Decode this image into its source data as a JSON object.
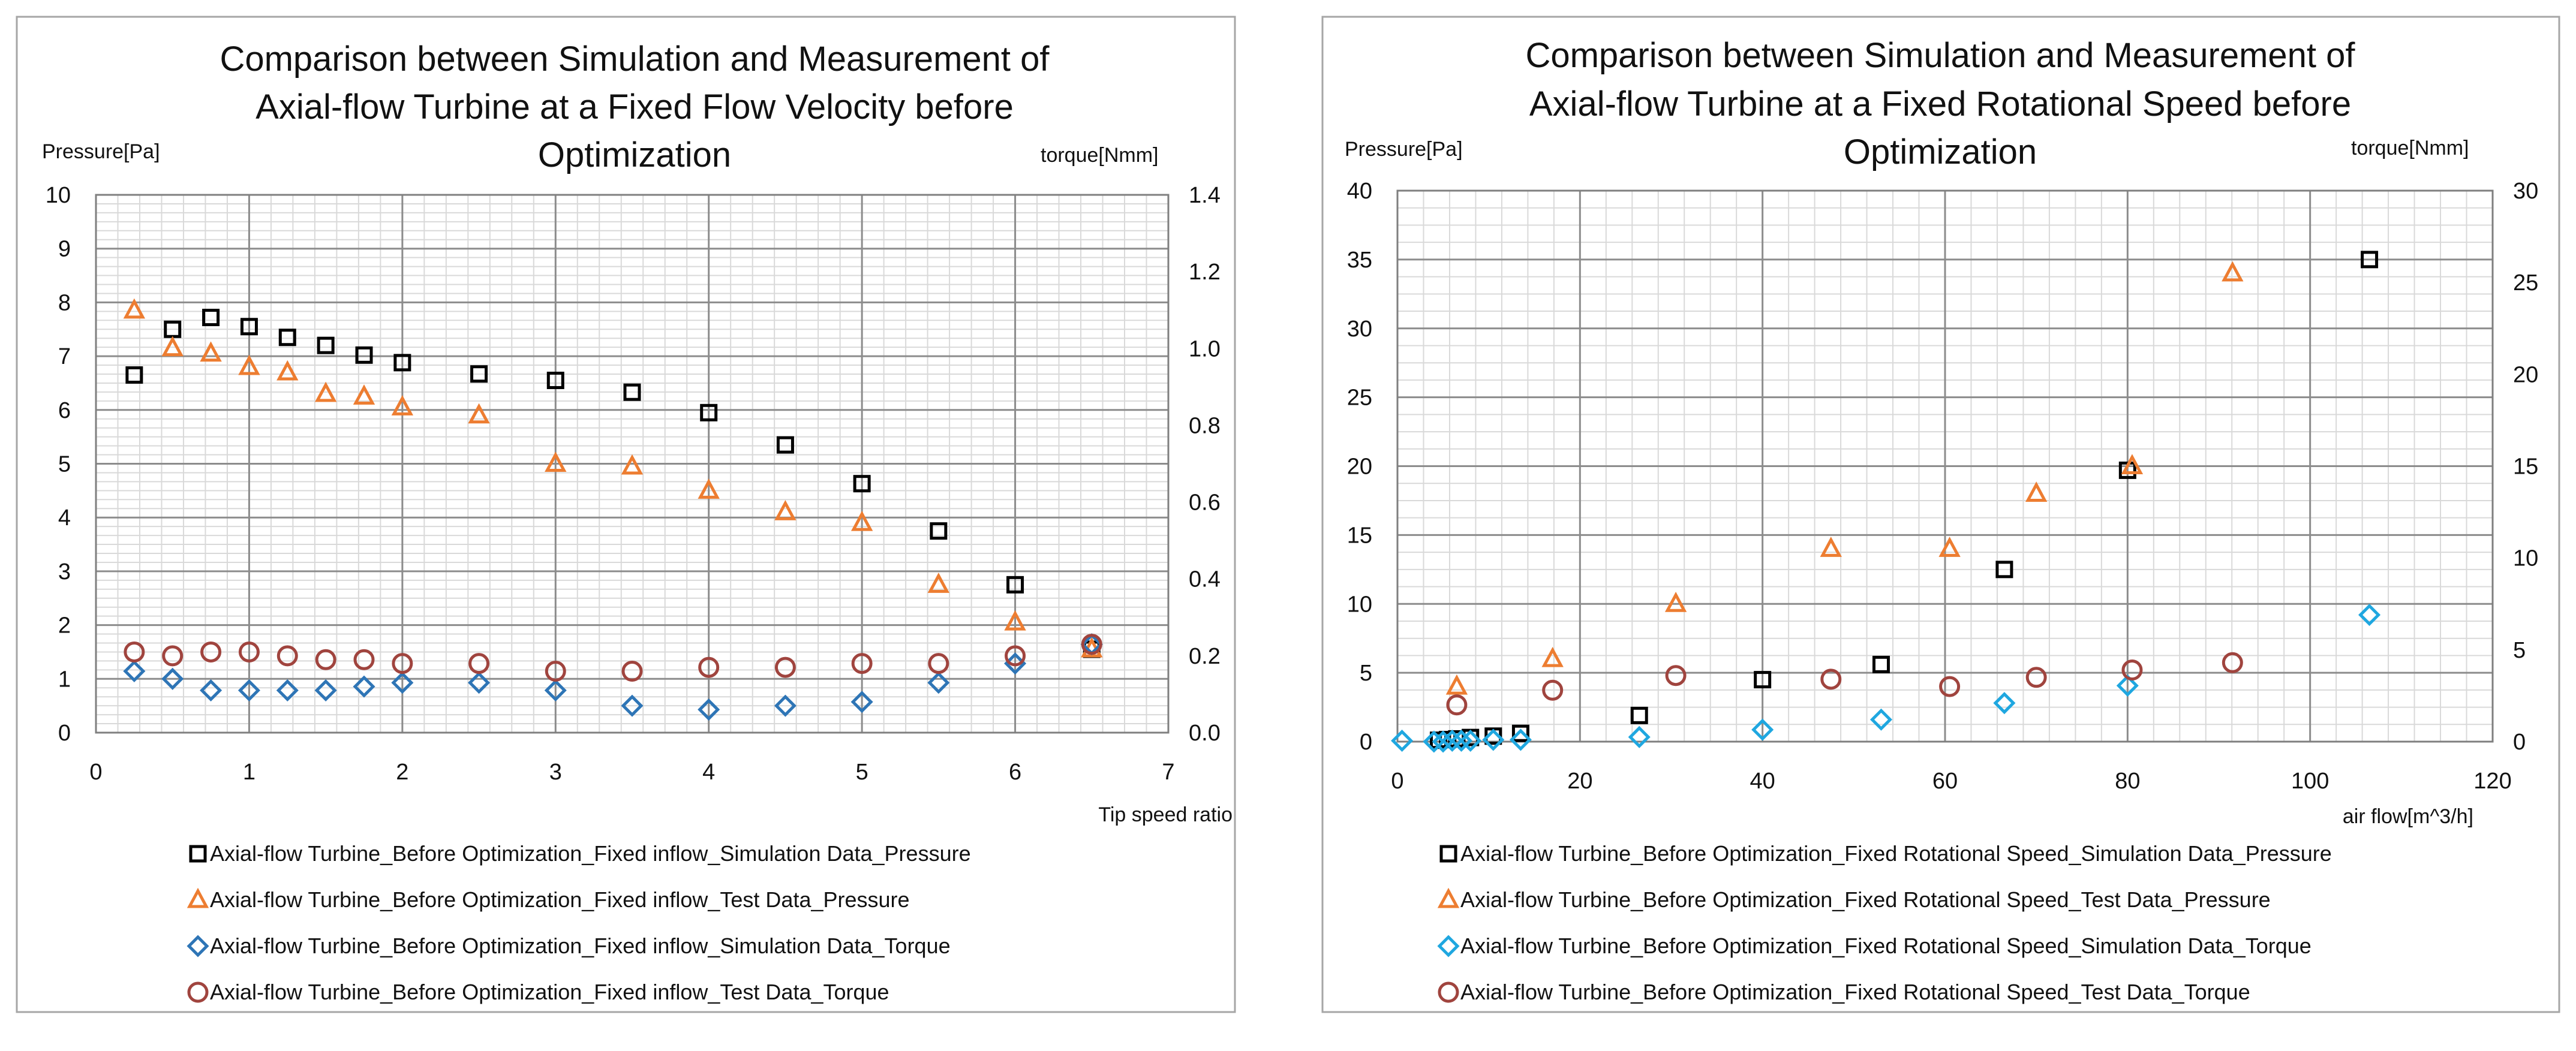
{
  "chart_data": [
    {
      "type": "scatter",
      "title_lines": [
        "Comparison between Simulation and Measurement of",
        "Axial-flow Turbine at a Fixed Flow Velocity before",
        "Optimization"
      ],
      "xlabel": "Tip speed ratio",
      "ylabel_left": "Pressure[Pa]",
      "ylabel_right": "torque[Nmm]",
      "xlim": [
        0,
        7
      ],
      "ylim_left": [
        0,
        10
      ],
      "ylim_right": [
        0,
        1.4
      ],
      "x_ticks": [
        "0",
        "1",
        "2",
        "3",
        "4",
        "5",
        "6",
        "7"
      ],
      "y_left_ticks": [
        "0",
        "1",
        "2",
        "3",
        "4",
        "5",
        "6",
        "7",
        "8",
        "9",
        "10"
      ],
      "y_right_ticks": [
        "0.0",
        "0.2",
        "0.4",
        "0.6",
        "0.8",
        "1.0",
        "1.2",
        "1.4"
      ],
      "grid": true,
      "series": [
        {
          "name": "Axial-flow Turbine_Before Optimization_Fixed inflow_Simulation Data_Pressure",
          "marker": "square",
          "color": "#000000",
          "axis": "left",
          "x": [
            0.25,
            0.5,
            0.75,
            1.0,
            1.25,
            1.5,
            1.75,
            2.0,
            2.5,
            3.0,
            3.5,
            4.0,
            4.5,
            5.0,
            5.5,
            6.0,
            6.5
          ],
          "y": [
            6.65,
            7.5,
            7.72,
            7.55,
            7.35,
            7.2,
            7.02,
            6.88,
            6.67,
            6.55,
            6.33,
            5.95,
            5.35,
            4.63,
            3.75,
            2.75,
            1.55
          ]
        },
        {
          "name": "Axial-flow Turbine_Before Optimization_Fixed inflow_Test Data_Pressure",
          "marker": "triangle",
          "color": "#ED7D31",
          "axis": "left",
          "x": [
            0.25,
            0.5,
            0.75,
            1.0,
            1.25,
            1.5,
            1.75,
            2.0,
            2.5,
            3.0,
            3.5,
            4.0,
            4.5,
            5.0,
            5.5,
            6.0,
            6.5
          ],
          "y": [
            7.85,
            7.15,
            7.05,
            6.8,
            6.7,
            6.3,
            6.25,
            6.05,
            5.9,
            5.0,
            4.95,
            4.5,
            4.1,
            3.9,
            2.75,
            2.05,
            1.55
          ]
        },
        {
          "name": "Axial-flow Turbine_Before Optimization_Fixed inflow_Simulation Data_Torque",
          "marker": "diamond",
          "color": "#2E75B6",
          "axis": "right",
          "x": [
            0.25,
            0.5,
            0.75,
            1.0,
            1.25,
            1.5,
            1.75,
            2.0,
            2.5,
            3.0,
            3.5,
            4.0,
            4.5,
            5.0,
            5.5,
            6.0,
            6.5
          ],
          "y": [
            0.16,
            0.14,
            0.11,
            0.11,
            0.11,
            0.11,
            0.12,
            0.13,
            0.13,
            0.11,
            0.07,
            0.06,
            0.07,
            0.08,
            0.13,
            0.18,
            0.23
          ]
        },
        {
          "name": "Axial-flow Turbine_Before Optimization_Fixed inflow_Test Data_Torque",
          "marker": "circle",
          "color": "#A0443E",
          "axis": "right",
          "x": [
            0.25,
            0.5,
            0.75,
            1.0,
            1.25,
            1.5,
            1.75,
            2.0,
            2.5,
            3.0,
            3.5,
            4.0,
            4.5,
            5.0,
            5.5,
            6.0,
            6.5
          ],
          "y": [
            0.21,
            0.2,
            0.21,
            0.21,
            0.2,
            0.19,
            0.19,
            0.18,
            0.18,
            0.16,
            0.16,
            0.17,
            0.17,
            0.18,
            0.18,
            0.2,
            0.23
          ]
        }
      ]
    },
    {
      "type": "scatter",
      "title_lines": [
        "Comparison between Simulation and Measurement of",
        "Axial-flow Turbine at a Fixed Rotational Speed before",
        "Optimization"
      ],
      "xlabel": "air flow[m^3/h]",
      "ylabel_left": "Pressure[Pa]",
      "ylabel_right": "torque[Nmm]",
      "xlim": [
        0,
        120
      ],
      "ylim_left": [
        0,
        40
      ],
      "ylim_right": [
        0,
        30
      ],
      "x_ticks": [
        "0",
        "20",
        "40",
        "60",
        "80",
        "100",
        "120"
      ],
      "y_left_ticks": [
        "0",
        "5",
        "10",
        "15",
        "20",
        "25",
        "30",
        "35",
        "40"
      ],
      "y_right_ticks": [
        "0",
        "5",
        "10",
        "15",
        "20",
        "25",
        "30"
      ],
      "grid": true,
      "series": [
        {
          "name": "Axial-flow Turbine_Before Optimization_Fixed Rotational Speed_Simulation Data_Pressure",
          "marker": "square",
          "color": "#000000",
          "axis": "left",
          "x": [
            4.5,
            5.5,
            6.5,
            8.0,
            10.5,
            13.5,
            26.5,
            40,
            53,
            66.5,
            80,
            106.5
          ],
          "y": [
            0.1,
            0.15,
            0.2,
            0.3,
            0.4,
            0.6,
            1.9,
            4.5,
            5.6,
            12.5,
            19.7,
            35.0
          ]
        },
        {
          "name": "Axial-flow Turbine_Before Optimization_Fixed Rotational Speed_Test Data_Pressure",
          "marker": "triangle",
          "color": "#ED7D31",
          "axis": "left",
          "x": [
            6.5,
            17,
            30.5,
            47.5,
            60.5,
            70,
            80.5,
            91.5
          ],
          "y": [
            4.0,
            6.0,
            10.0,
            14.0,
            14.0,
            18.0,
            20.0,
            34.0
          ]
        },
        {
          "name": "Axial-flow Turbine_Before Optimization_Fixed Rotational Speed_Simulation Data_Torque",
          "marker": "diamond",
          "color": "#1FA7E0",
          "axis": "right",
          "x": [
            0.5,
            4.0,
            5.0,
            6.0,
            7.0,
            8.0,
            10.5,
            13.5,
            26.5,
            40,
            53,
            66.5,
            80,
            106.5
          ],
          "y": [
            0.05,
            0.0,
            0.0,
            0.05,
            0.05,
            0.05,
            0.1,
            0.1,
            0.25,
            0.65,
            1.2,
            2.1,
            3.05,
            6.9
          ]
        },
        {
          "name": "Axial-flow Turbine_Before Optimization_Fixed Rotational Speed_Test Data_Torque",
          "marker": "circle",
          "color": "#A0443E",
          "axis": "right",
          "x": [
            6.5,
            17,
            30.5,
            47.5,
            60.5,
            70,
            80.5,
            91.5
          ],
          "y": [
            2.0,
            2.8,
            3.6,
            3.4,
            3.0,
            3.5,
            3.9,
            4.3
          ]
        }
      ]
    }
  ]
}
